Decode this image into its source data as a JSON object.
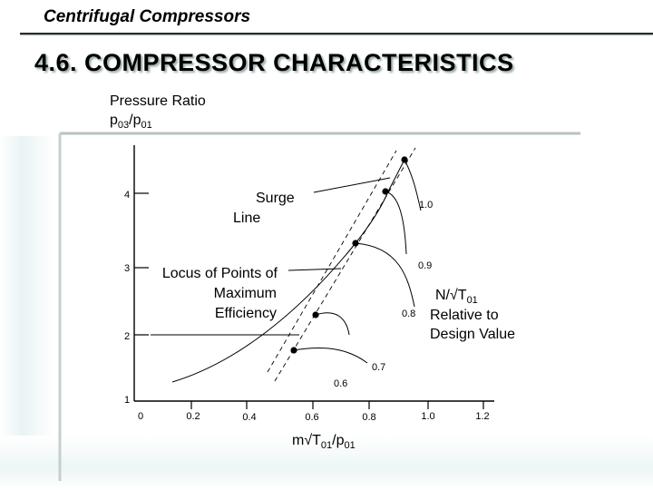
{
  "header": {
    "title": "Centrifugal Compressors"
  },
  "slide": {
    "title": "4.6. COMPRESSOR CHARACTERISTICS"
  },
  "diagram": {
    "y_axis_label": "Pressure Ratio",
    "y_axis_symbol": {
      "base1": "p",
      "sub1": "03",
      "sep": "/p",
      "sub2": "01"
    },
    "y_ticks": [
      "4",
      "3",
      "2",
      "1"
    ],
    "x_ticks": [
      "0",
      "0.2",
      "0.4",
      "0.6",
      "0.8",
      "1.0",
      "1.2"
    ],
    "x_axis_symbol": {
      "base": "m√T",
      "sub1": "01",
      "sep": "/p",
      "sub2": "01"
    },
    "surge_line_label": [
      "Surge",
      "Line"
    ],
    "locus_label": [
      "Locus of Points of",
      "Maximum",
      "Efficiency"
    ],
    "speed_label": {
      "base": "N/√T",
      "sub": "01",
      "line2": "Relative to",
      "line3": "Design Value"
    },
    "speed_values": [
      "1.0",
      "0.9",
      "0.8",
      "0.7",
      "0.6"
    ]
  },
  "colors": {
    "ink": "#000000",
    "accent_shadow": "#9aa9aa",
    "background_tint": "#e9f3f4"
  }
}
